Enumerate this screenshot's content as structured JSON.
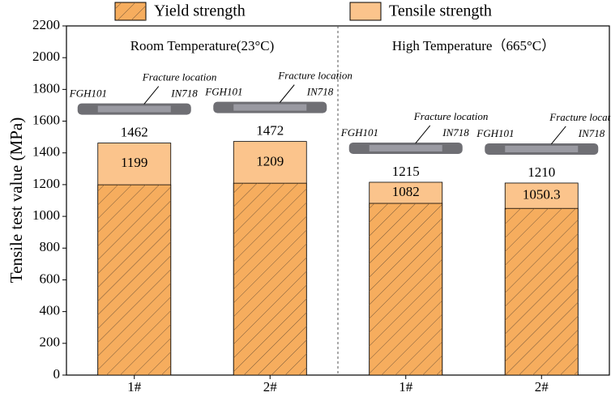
{
  "chart_data": {
    "type": "bar",
    "y_label": "Tensile test value (MPa)",
    "categories": [
      "1#",
      "2#",
      "1#",
      "2#"
    ],
    "group_labels": [
      "Room Temperature(23°C)",
      "High Temperature（665°C）"
    ],
    "specimen_texts": {
      "fracture": "Fracture location",
      "left": "FGH101",
      "right": "IN718"
    },
    "series": [
      {
        "name": "Tensile strength",
        "color": "#fbc48c",
        "values": [
          1462,
          1472,
          1215,
          1210
        ]
      },
      {
        "name": "Yield strength",
        "color": "#f6ad5e",
        "hatch": true,
        "values": [
          1199,
          1209,
          1082,
          1050.3
        ]
      }
    ],
    "ylim": [
      0,
      2200
    ],
    "yticks": [
      0,
      200,
      400,
      600,
      800,
      1000,
      1200,
      1400,
      1600,
      1800,
      2000,
      2200
    ],
    "legend": "top"
  }
}
